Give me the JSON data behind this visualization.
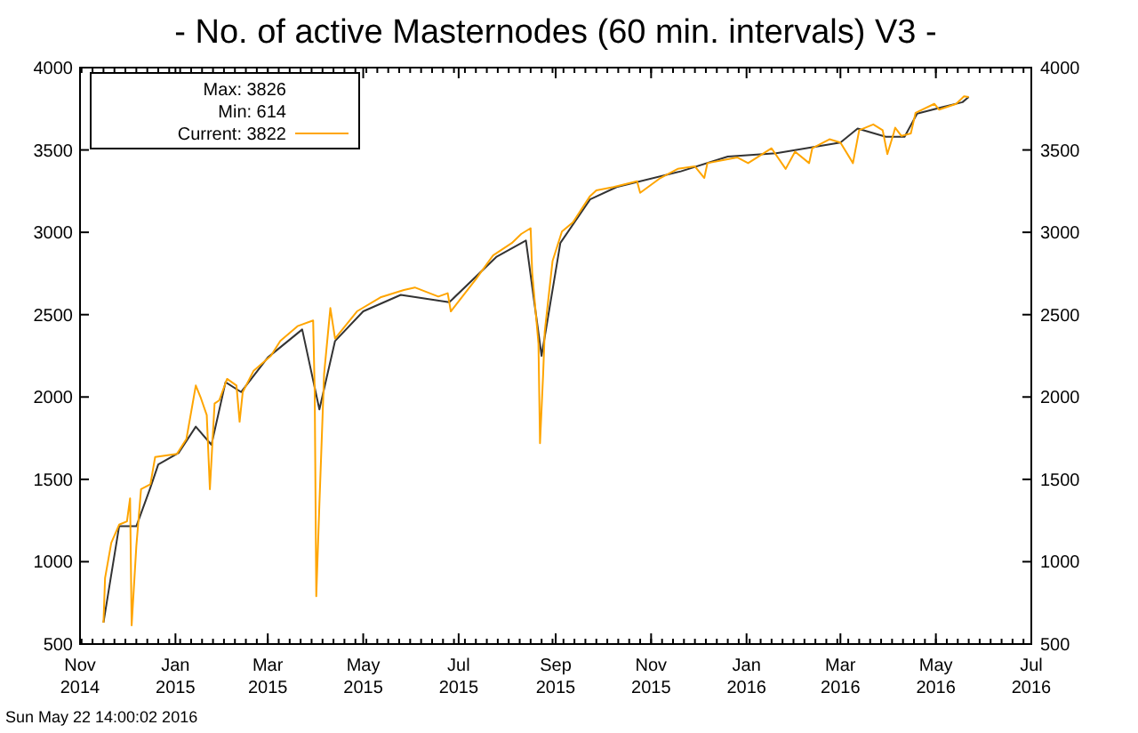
{
  "chart_data": {
    "type": "line",
    "title": "- No. of active Masternodes (60 min. intervals) V3 -",
    "x": [
      "2014-11-16",
      "2014-11-17",
      "2014-11-21",
      "2014-11-26",
      "2014-12-01",
      "2014-12-03",
      "2014-12-04",
      "2014-12-07",
      "2014-12-10",
      "2014-12-16",
      "2014-12-19",
      "2015-01-02",
      "2015-01-08",
      "2015-01-14",
      "2015-01-17",
      "2015-01-21",
      "2015-01-23",
      "2015-01-26",
      "2015-01-29",
      "2015-02-03",
      "2015-02-09",
      "2015-02-11",
      "2015-02-13",
      "2015-02-20",
      "2015-03-03",
      "2015-03-09",
      "2015-03-20",
      "2015-03-30",
      "2015-03-31",
      "2015-04-01",
      "2015-04-03",
      "2015-04-06",
      "2015-04-10",
      "2015-04-13",
      "2015-04-27",
      "2015-05-12",
      "2015-05-27",
      "2015-06-03",
      "2015-06-18",
      "2015-06-24",
      "2015-06-26",
      "2015-07-12",
      "2015-07-23",
      "2015-08-04",
      "2015-08-10",
      "2015-08-16",
      "2015-08-17",
      "2015-08-21",
      "2015-08-22",
      "2015-08-24",
      "2015-08-25",
      "2015-08-30",
      "2015-09-05",
      "2015-09-12",
      "2015-09-23",
      "2015-09-27",
      "2015-10-08",
      "2015-10-23",
      "2015-10-25",
      "2015-11-07",
      "2015-11-18",
      "2015-11-29",
      "2015-12-05",
      "2015-12-07",
      "2015-12-26",
      "2016-01-02",
      "2016-01-17",
      "2016-01-26",
      "2016-02-01",
      "2016-02-10",
      "2016-02-12",
      "2016-02-23",
      "2016-03-01",
      "2016-03-09",
      "2016-03-13",
      "2016-03-22",
      "2016-03-28",
      "2016-03-31",
      "2016-04-04",
      "2016-04-05",
      "2016-04-09",
      "2016-04-15",
      "2016-04-18",
      "2016-04-30",
      "2016-05-03",
      "2016-05-14",
      "2016-05-19",
      "2016-05-22"
    ],
    "series": [
      {
        "name": "Current: 3822",
        "color": "#ffa500",
        "values": [
          630,
          900,
          1115,
          1225,
          1245,
          1385,
          614,
          1095,
          1440,
          1470,
          1635,
          1655,
          1745,
          2070,
          2000,
          1890,
          1440,
          1960,
          1980,
          2110,
          2070,
          1850,
          2030,
          2160,
          2250,
          2340,
          2430,
          2465,
          2030,
          790,
          1350,
          2140,
          2540,
          2355,
          2520,
          2605,
          2650,
          2665,
          2610,
          2630,
          2520,
          2715,
          2860,
          2935,
          2990,
          3025,
          2755,
          2325,
          1720,
          2140,
          2395,
          2825,
          3005,
          3060,
          3220,
          3255,
          3275,
          3310,
          3240,
          3330,
          3385,
          3400,
          3330,
          3420,
          3455,
          3420,
          3510,
          3385,
          3490,
          3420,
          3510,
          3565,
          3545,
          3420,
          3620,
          3655,
          3620,
          3475,
          3600,
          3635,
          3585,
          3600,
          3725,
          3780,
          3745,
          3780,
          3826,
          3822
        ]
      },
      {
        "color": "#333333",
        "x": [
          "2014-11-16",
          "2014-11-26",
          "2014-12-07",
          "2014-12-16",
          "2014-12-21",
          "2015-01-03",
          "2015-01-14",
          "2015-01-24",
          "2015-02-02",
          "2015-02-12",
          "2015-03-01",
          "2015-03-23",
          "2015-04-03",
          "2015-04-13",
          "2015-05-01",
          "2015-05-25",
          "2015-06-25",
          "2015-07-25",
          "2015-08-13",
          "2015-08-23",
          "2015-09-04",
          "2015-09-23",
          "2015-10-10",
          "2015-11-20",
          "2015-12-20",
          "2016-01-20",
          "2016-03-01",
          "2016-03-12",
          "2016-03-30",
          "2016-04-11",
          "2016-04-19",
          "2016-05-05",
          "2016-05-18",
          "2016-05-22"
        ],
        "values": [
          630,
          1215,
          1215,
          1450,
          1590,
          1660,
          1820,
          1710,
          2090,
          2030,
          2240,
          2410,
          1925,
          2340,
          2520,
          2620,
          2575,
          2850,
          2950,
          2250,
          2935,
          3200,
          3275,
          3370,
          3460,
          3480,
          3545,
          3630,
          3580,
          3580,
          3720,
          3760,
          3790,
          3822
        ]
      }
    ],
    "xlim": [
      "2014-11-01",
      "2016-07-01"
    ],
    "xticks": [
      {
        "value": "2014-11-01",
        "label": "Nov 2014"
      },
      {
        "value": "2015-01-01",
        "label": "Jan 2015"
      },
      {
        "value": "2015-03-01",
        "label": "Mar 2015"
      },
      {
        "value": "2015-05-01",
        "label": "May 2015"
      },
      {
        "value": "2015-07-01",
        "label": "Jul 2015"
      },
      {
        "value": "2015-09-01",
        "label": "Sep 2015"
      },
      {
        "value": "2015-11-01",
        "label": "Nov 2015"
      },
      {
        "value": "2016-01-01",
        "label": "Jan 2016"
      },
      {
        "value": "2016-03-01",
        "label": "Mar 2016"
      },
      {
        "value": "2016-05-01",
        "label": "May 2016"
      },
      {
        "value": "2016-07-01",
        "label": "Jul 2016"
      }
    ],
    "ylim": [
      500,
      4000
    ],
    "yticks": [
      500,
      1000,
      1500,
      2000,
      2500,
      3000,
      3500,
      4000
    ],
    "y2lim": [
      500,
      4000
    ],
    "y2ticks": [
      500,
      1000,
      1500,
      2000,
      2500,
      3000,
      3500,
      4000
    ],
    "legend": "top left",
    "grid": false,
    "line_style": "solid",
    "marker": "none",
    "annotations": [
      "Max: 3826",
      "Min: 614",
      "Sun May 22 14:00:02 2016"
    ]
  }
}
